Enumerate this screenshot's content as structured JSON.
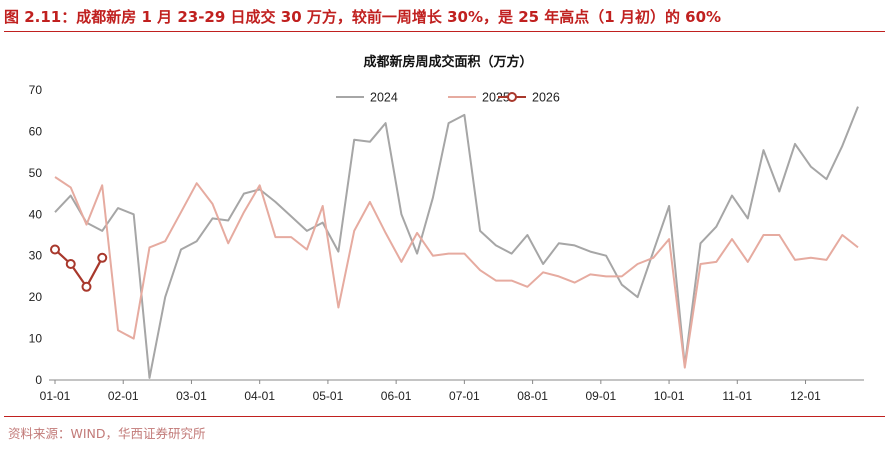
{
  "figure": {
    "title": "图 2.11：成都新房 1 月 23-29 日成交 30 万方，较前一周增长 30%，是 25 年高点（1 月初）的 60%",
    "source": "资料来源：WIND，华西证券研究所"
  },
  "chart_data": {
    "type": "line",
    "title": "成都新房周成交面积（万方）",
    "xlabel": "",
    "ylabel": "",
    "ylim": [
      0,
      70
    ],
    "yticks": [
      0,
      10,
      20,
      30,
      40,
      50,
      60,
      70
    ],
    "xticks": [
      "01-01",
      "02-01",
      "03-01",
      "04-01",
      "05-01",
      "06-01",
      "07-01",
      "08-01",
      "09-01",
      "10-01",
      "11-01",
      "12-01"
    ],
    "x_unit": "week index (week 1 = 01-01)",
    "grid": false,
    "legend_position": "top-center",
    "series": [
      {
        "name": "2024",
        "color": "#a6a6a6",
        "values": [
          40.5,
          44.5,
          38,
          36,
          41.5,
          40,
          0.5,
          20,
          31.5,
          33.5,
          39,
          38.5,
          45,
          46,
          43,
          39.5,
          36,
          38,
          31,
          58,
          57.5,
          62,
          40,
          30.5,
          44,
          62,
          64,
          36,
          32.5,
          30.5,
          35,
          28,
          33,
          32.5,
          31,
          30,
          23,
          20,
          31,
          42,
          3.5,
          33,
          37,
          44.5,
          39,
          55.5,
          45.5,
          57,
          51.5,
          48.5,
          56.5,
          66
        ]
      },
      {
        "name": "2025",
        "color": "#e6aba0",
        "values": [
          49,
          46.5,
          37.5,
          47,
          12,
          10,
          32,
          33.5,
          40.5,
          47.5,
          42.5,
          33,
          40.5,
          47,
          34.5,
          34.5,
          31.5,
          42,
          17.5,
          36,
          43,
          35.5,
          28.5,
          35.5,
          30,
          30.5,
          30.5,
          26.5,
          24,
          24,
          22.5,
          26,
          25,
          23.5,
          25.5,
          25,
          25,
          28,
          29.5,
          34,
          3,
          28,
          28.5,
          34,
          28.5,
          35,
          35,
          29,
          29.5,
          29,
          35,
          32
        ]
      },
      {
        "name": "2026",
        "color": "#a8382c",
        "marker": "circle",
        "values": [
          31.5,
          28,
          22.5,
          29.5
        ]
      }
    ]
  }
}
